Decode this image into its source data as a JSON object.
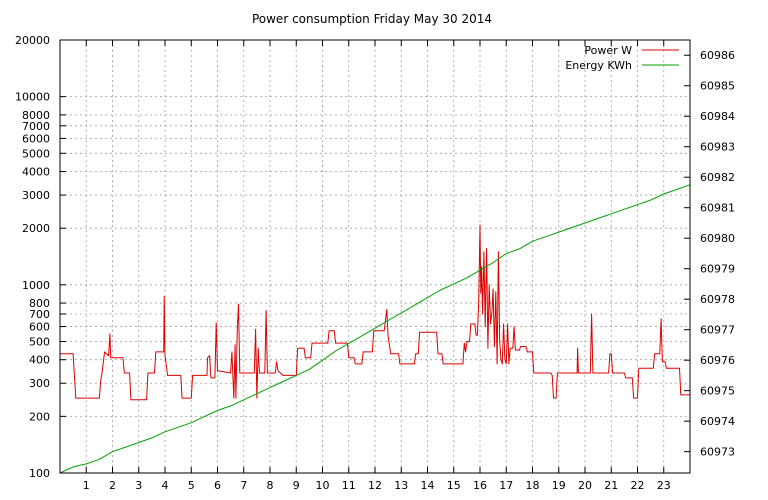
{
  "chart_data": {
    "type": "line",
    "title": "Power consumption Friday May 30 2014",
    "xlabel": "",
    "ylabel": "",
    "y2label": "",
    "xlim": [
      0,
      24
    ],
    "x_ticks": [
      1,
      2,
      3,
      4,
      5,
      6,
      7,
      8,
      9,
      10,
      11,
      12,
      13,
      14,
      15,
      16,
      17,
      18,
      19,
      20,
      21,
      22,
      23
    ],
    "y_scale": "log",
    "ylim": [
      100,
      20000
    ],
    "y_ticks": [
      100,
      200,
      300,
      400,
      500,
      600,
      700,
      800,
      1000,
      2000,
      3000,
      4000,
      5000,
      6000,
      7000,
      8000,
      10000,
      20000
    ],
    "y2lim": [
      60972.3,
      60986.5
    ],
    "y2_ticks": [
      60973,
      60974,
      60975,
      60976,
      60977,
      60978,
      60979,
      60980,
      60981,
      60982,
      60983,
      60984,
      60985,
      60986
    ],
    "grid": true,
    "legend_position": "top-right",
    "series": [
      {
        "name": "Power W",
        "axis": "left",
        "color": "#dd0000",
        "points": [
          [
            0,
            430
          ],
          [
            0.5,
            430
          ],
          [
            0.55,
            330
          ],
          [
            0.6,
            250
          ],
          [
            1.5,
            250
          ],
          [
            1.55,
            310
          ],
          [
            1.6,
            340
          ],
          [
            1.7,
            440
          ],
          [
            1.85,
            420
          ],
          [
            1.9,
            550
          ],
          [
            1.93,
            410
          ],
          [
            2.4,
            410
          ],
          [
            2.45,
            340
          ],
          [
            2.65,
            340
          ],
          [
            2.7,
            245
          ],
          [
            3.3,
            245
          ],
          [
            3.35,
            340
          ],
          [
            3.6,
            340
          ],
          [
            3.65,
            440
          ],
          [
            3.95,
            440
          ],
          [
            3.97,
            870
          ],
          [
            4.0,
            420
          ],
          [
            4.1,
            330
          ],
          [
            4.6,
            330
          ],
          [
            4.65,
            250
          ],
          [
            5.0,
            250
          ],
          [
            5.05,
            330
          ],
          [
            5.6,
            330
          ],
          [
            5.62,
            410
          ],
          [
            5.7,
            420
          ],
          [
            5.75,
            320
          ],
          [
            5.9,
            320
          ],
          [
            5.95,
            630
          ],
          [
            6.0,
            350
          ],
          [
            6.5,
            340
          ],
          [
            6.55,
            440
          ],
          [
            6.62,
            250
          ],
          [
            6.67,
            480
          ],
          [
            6.7,
            250
          ],
          [
            6.75,
            560
          ],
          [
            6.8,
            790
          ],
          [
            6.85,
            340
          ],
          [
            7.4,
            340
          ],
          [
            7.45,
            580
          ],
          [
            7.5,
            250
          ],
          [
            7.55,
            460
          ],
          [
            7.6,
            340
          ],
          [
            7.8,
            340
          ],
          [
            7.85,
            730
          ],
          [
            7.9,
            340
          ],
          [
            8.2,
            340
          ],
          [
            8.25,
            390
          ],
          [
            8.3,
            350
          ],
          [
            8.5,
            330
          ],
          [
            8.6,
            330
          ],
          [
            9.0,
            330
          ],
          [
            9.05,
            460
          ],
          [
            9.3,
            460
          ],
          [
            9.35,
            410
          ],
          [
            9.55,
            410
          ],
          [
            9.6,
            490
          ],
          [
            10.2,
            490
          ],
          [
            10.25,
            570
          ],
          [
            10.45,
            570
          ],
          [
            10.5,
            490
          ],
          [
            10.95,
            490
          ],
          [
            11.0,
            410
          ],
          [
            11.2,
            410
          ],
          [
            11.25,
            380
          ],
          [
            11.5,
            380
          ],
          [
            11.55,
            440
          ],
          [
            11.9,
            440
          ],
          [
            11.95,
            570
          ],
          [
            12.35,
            570
          ],
          [
            12.45,
            740
          ],
          [
            12.5,
            530
          ],
          [
            12.6,
            430
          ],
          [
            12.9,
            430
          ],
          [
            12.95,
            380
          ],
          [
            13.5,
            380
          ],
          [
            13.55,
            430
          ],
          [
            13.65,
            430
          ],
          [
            13.7,
            560
          ],
          [
            14.35,
            560
          ],
          [
            14.4,
            430
          ],
          [
            14.55,
            430
          ],
          [
            14.6,
            380
          ],
          [
            15.35,
            380
          ],
          [
            15.4,
            490
          ],
          [
            15.45,
            440
          ],
          [
            15.5,
            500
          ],
          [
            15.6,
            500
          ],
          [
            15.65,
            620
          ],
          [
            15.8,
            620
          ],
          [
            15.85,
            540
          ],
          [
            15.9,
            540
          ],
          [
            15.95,
            820
          ],
          [
            16.0,
            2080
          ],
          [
            16.03,
            900
          ],
          [
            16.06,
            1250
          ],
          [
            16.1,
            700
          ],
          [
            16.15,
            1500
          ],
          [
            16.2,
            600
          ],
          [
            16.25,
            1560
          ],
          [
            16.3,
            460
          ],
          [
            16.35,
            1000
          ],
          [
            16.4,
            620
          ],
          [
            16.45,
            700
          ],
          [
            16.5,
            950
          ],
          [
            16.55,
            470
          ],
          [
            16.6,
            920
          ],
          [
            16.65,
            380
          ],
          [
            16.7,
            1500
          ],
          [
            16.75,
            500
          ],
          [
            16.8,
            400
          ],
          [
            16.85,
            380
          ],
          [
            16.9,
            620
          ],
          [
            16.95,
            400
          ],
          [
            17.0,
            380
          ],
          [
            17.05,
            620
          ],
          [
            17.1,
            380
          ],
          [
            17.15,
            460
          ],
          [
            17.25,
            460
          ],
          [
            17.3,
            600
          ],
          [
            17.35,
            450
          ],
          [
            17.5,
            450
          ],
          [
            17.55,
            470
          ],
          [
            17.75,
            470
          ],
          [
            17.8,
            440
          ],
          [
            17.9,
            440
          ],
          [
            18.0,
            440
          ],
          [
            18.05,
            340
          ],
          [
            18.7,
            340
          ],
          [
            18.75,
            330
          ],
          [
            18.8,
            250
          ],
          [
            18.9,
            250
          ],
          [
            18.95,
            340
          ],
          [
            19.7,
            340
          ],
          [
            19.72,
            460
          ],
          [
            19.75,
            340
          ],
          [
            20.2,
            340
          ],
          [
            20.25,
            700
          ],
          [
            20.3,
            340
          ],
          [
            20.9,
            340
          ],
          [
            20.95,
            430
          ],
          [
            21.0,
            430
          ],
          [
            21.05,
            340
          ],
          [
            21.5,
            340
          ],
          [
            21.55,
            320
          ],
          [
            21.8,
            320
          ],
          [
            21.85,
            250
          ],
          [
            22.0,
            250
          ],
          [
            22.05,
            360
          ],
          [
            22.6,
            360
          ],
          [
            22.65,
            430
          ],
          [
            22.85,
            430
          ],
          [
            22.9,
            660
          ],
          [
            22.95,
            390
          ],
          [
            23.05,
            390
          ],
          [
            23.1,
            360
          ],
          [
            23.6,
            360
          ],
          [
            23.65,
            260
          ],
          [
            24.0,
            260
          ]
        ]
      },
      {
        "name": "Energy KWh",
        "axis": "right",
        "color": "#00a000",
        "points": [
          [
            0,
            60972.3
          ],
          [
            0.5,
            60972.5
          ],
          [
            1,
            60972.6
          ],
          [
            1.5,
            60972.75
          ],
          [
            2,
            60973.0
          ],
          [
            2.5,
            60973.15
          ],
          [
            3,
            60973.3
          ],
          [
            3.5,
            60973.45
          ],
          [
            4,
            60973.65
          ],
          [
            4.5,
            60973.8
          ],
          [
            5,
            60973.95
          ],
          [
            5.5,
            60974.15
          ],
          [
            6,
            60974.35
          ],
          [
            6.5,
            60974.5
          ],
          [
            7,
            60974.7
          ],
          [
            7.5,
            60974.9
          ],
          [
            8,
            60975.1
          ],
          [
            8.5,
            60975.3
          ],
          [
            9,
            60975.5
          ],
          [
            9.5,
            60975.7
          ],
          [
            10,
            60976.0
          ],
          [
            10.5,
            60976.3
          ],
          [
            11,
            60976.55
          ],
          [
            11.5,
            60976.8
          ],
          [
            12,
            60977.05
          ],
          [
            12.5,
            60977.3
          ],
          [
            13,
            60977.55
          ],
          [
            13.5,
            60977.8
          ],
          [
            14,
            60978.05
          ],
          [
            14.5,
            60978.3
          ],
          [
            15,
            60978.5
          ],
          [
            15.5,
            60978.7
          ],
          [
            16,
            60978.95
          ],
          [
            16.5,
            60979.2
          ],
          [
            17,
            60979.5
          ],
          [
            17.5,
            60979.65
          ],
          [
            18,
            60979.9
          ],
          [
            18.5,
            60980.05
          ],
          [
            19,
            60980.2
          ],
          [
            19.5,
            60980.35
          ],
          [
            20,
            60980.5
          ],
          [
            20.5,
            60980.65
          ],
          [
            21,
            60980.8
          ],
          [
            21.5,
            60980.95
          ],
          [
            22,
            60981.1
          ],
          [
            22.5,
            60981.25
          ],
          [
            23,
            60981.45
          ],
          [
            23.5,
            60981.6
          ],
          [
            24,
            60981.75
          ]
        ]
      }
    ]
  }
}
